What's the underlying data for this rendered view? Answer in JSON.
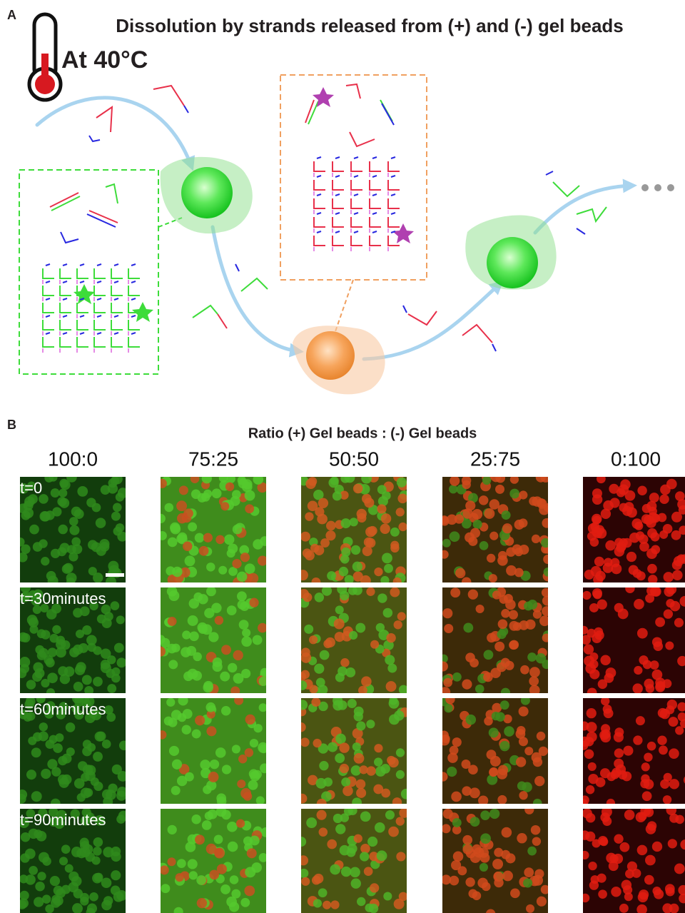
{
  "panel_a": {
    "label": "A",
    "title": "Dissolution by strands released from (+) and (-) gel beads",
    "temperature": "At 40°C"
  },
  "panel_b": {
    "label": "B",
    "title": "Ratio  (+) Gel beads : (-) Gel beads",
    "columns": [
      "100:0",
      "75:25",
      "50:50",
      "25:75",
      "0:100"
    ],
    "rows": [
      "t=0",
      "t=30minutes",
      "t=60minutes",
      "t=90minutes"
    ]
  }
}
